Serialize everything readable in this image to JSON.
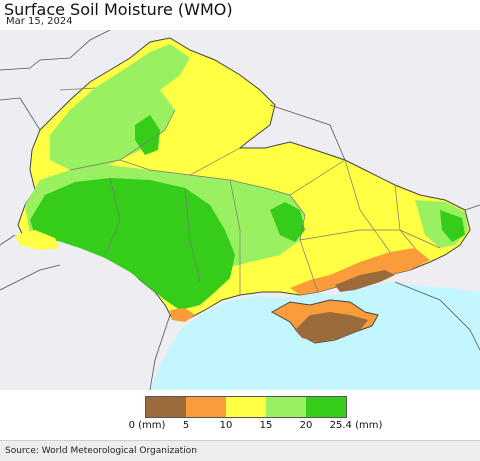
{
  "title": "Surface Soil Moisture (WMO)",
  "date": "Mar 15, 2024",
  "legend": {
    "colors": [
      "#9c6b3b",
      "#fa9c3b",
      "#ffff44",
      "#99f060",
      "#35cc1a"
    ],
    "labels": [
      "0 (mm)",
      "5",
      "10",
      "15",
      "20",
      "25.4 (mm)"
    ]
  },
  "colors": {
    "outside_land": "#ededf2",
    "sea": "#c4f6ff",
    "border": "#444444"
  },
  "source": "Source: World Meteorological Organization"
}
